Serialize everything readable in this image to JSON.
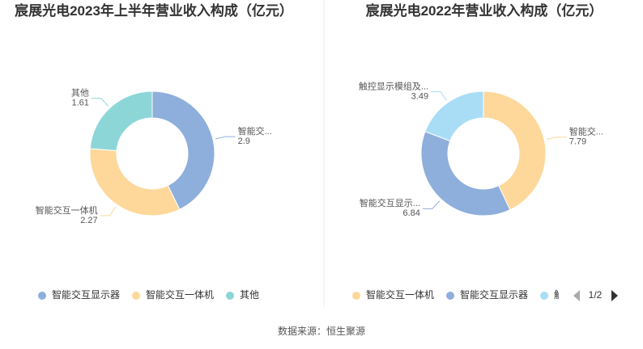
{
  "chart_data": [
    {
      "type": "pie",
      "title": "宸展光电2023年上半年营业收入构成（亿元）",
      "categories": [
        "智能交互显示器",
        "智能交互一体机",
        "其他"
      ],
      "labels": [
        "智能交...",
        "智能交互一体机",
        "其他"
      ],
      "values": [
        2.9,
        2.27,
        1.61
      ],
      "colors": [
        "#8eaedb",
        "#fdd89a",
        "#8dd6d8"
      ]
    },
    {
      "type": "pie",
      "title": "宸展光电2022年营业收入构成（亿元）",
      "categories": [
        "智能交互一体机",
        "智能交互显示器",
        "触控显示模组及..."
      ],
      "labels": [
        "智能交...",
        "智能交互显示...",
        "触控显示模组及..."
      ],
      "values": [
        7.79,
        6.84,
        3.49
      ],
      "colors": [
        "#fdd89a",
        "#8eaedb",
        "#a9ddf6"
      ],
      "legend_page": "1/2"
    }
  ],
  "source": "数据来源：恒生聚源"
}
